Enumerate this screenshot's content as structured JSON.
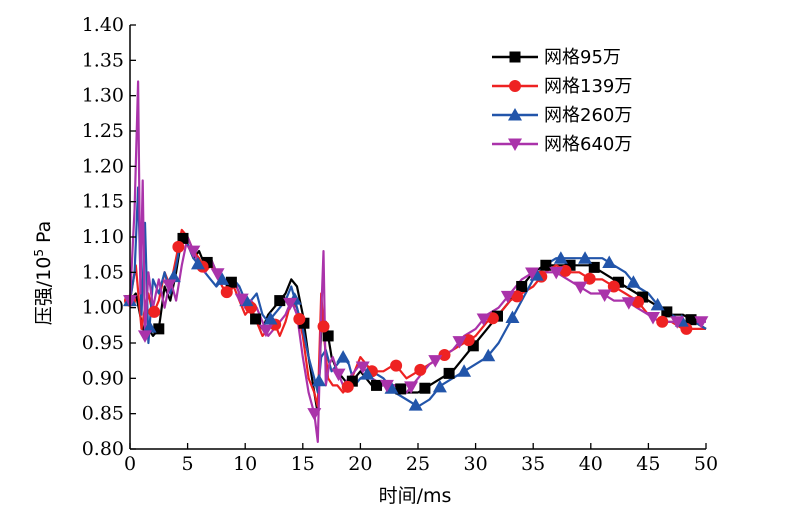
{
  "chart_data": {
    "type": "line",
    "title": "",
    "xlabel": "时间/ms",
    "ylabel_prefix": "压强/10",
    "ylabel_sup": "5",
    "ylabel_suffix": " Pa",
    "xlim": [
      0,
      50
    ],
    "ylim": [
      0.8,
      1.4
    ],
    "xticks": [
      "0",
      "5",
      "10",
      "15",
      "20",
      "25",
      "30",
      "35",
      "40",
      "45",
      "50"
    ],
    "yticks": [
      "0.80",
      "0.85",
      "0.90",
      "0.95",
      "1.00",
      "1.05",
      "1.10",
      "1.15",
      "1.20",
      "1.25",
      "1.30",
      "1.35",
      "1.40"
    ],
    "grid": false,
    "legend_position": "top-right",
    "series": [
      {
        "name": "网格95万",
        "color": "#000000",
        "marker": "square",
        "x": [
          0,
          0.5,
          1.0,
          1.3,
          1.6,
          2.0,
          2.5,
          3.0,
          3.5,
          4.0,
          4.5,
          5.0,
          5.5,
          6.0,
          6.5,
          7.0,
          7.5,
          8.0,
          8.5,
          9.0,
          9.5,
          10.0,
          10.5,
          11.0,
          11.5,
          12.0,
          12.5,
          13.0,
          13.5,
          14.0,
          14.5,
          15.0,
          15.5,
          16.0,
          16.3,
          16.6,
          17.0,
          17.5,
          18.0,
          18.5,
          19.0,
          19.5,
          20.0,
          21.0,
          22.0,
          23.0,
          24.0,
          25.0,
          26.0,
          27.0,
          28.0,
          29.0,
          30.0,
          31.0,
          32.0,
          33.0,
          34.0,
          35.0,
          36.0,
          37.0,
          38.0,
          39.0,
          40.0,
          41.0,
          42.0,
          43.0,
          44.0,
          45.0,
          46.0,
          47.0,
          48.0,
          49.0,
          50.0
        ],
        "y": [
          1.01,
          1.02,
          0.98,
          0.96,
          0.97,
          0.96,
          0.97,
          1.03,
          1.01,
          1.05,
          1.1,
          1.09,
          1.07,
          1.08,
          1.06,
          1.07,
          1.05,
          1.04,
          1.03,
          1.04,
          1.02,
          1.0,
          1.0,
          0.98,
          0.97,
          0.99,
          1.0,
          1.01,
          1.02,
          1.04,
          1.03,
          0.99,
          0.93,
          0.88,
          0.85,
          0.97,
          0.98,
          0.93,
          0.91,
          0.9,
          0.89,
          0.9,
          0.91,
          0.89,
          0.89,
          0.89,
          0.88,
          0.88,
          0.89,
          0.9,
          0.91,
          0.93,
          0.95,
          0.97,
          0.99,
          1.01,
          1.03,
          1.05,
          1.06,
          1.06,
          1.06,
          1.06,
          1.06,
          1.05,
          1.04,
          1.03,
          1.02,
          1.01,
          1.0,
          0.99,
          0.99,
          0.98,
          0.97
        ]
      },
      {
        "name": "网格139万",
        "color": "#ee2222",
        "marker": "circle",
        "x": [
          0,
          0.5,
          1.0,
          1.3,
          1.6,
          2.0,
          2.5,
          3.0,
          3.5,
          4.0,
          4.5,
          5.0,
          5.5,
          6.0,
          6.5,
          7.0,
          7.5,
          8.0,
          8.5,
          9.0,
          9.5,
          10.0,
          10.5,
          11.0,
          11.5,
          12.0,
          12.5,
          13.0,
          13.5,
          14.0,
          14.5,
          15.0,
          15.5,
          16.0,
          16.3,
          16.6,
          16.9,
          17.2,
          17.6,
          18.0,
          18.5,
          19.0,
          19.5,
          20.0,
          21.0,
          22.0,
          23.0,
          24.0,
          25.0,
          26.0,
          27.0,
          28.0,
          29.0,
          30.0,
          31.0,
          32.0,
          33.0,
          34.0,
          35.0,
          36.0,
          37.0,
          38.0,
          39.0,
          40.0,
          41.0,
          42.0,
          43.0,
          44.0,
          45.0,
          46.0,
          47.0,
          48.0,
          49.0,
          50.0
        ],
        "y": [
          1.01,
          1.06,
          0.97,
          1.0,
          1.02,
          0.99,
          1.01,
          1.05,
          1.03,
          1.07,
          1.11,
          1.1,
          1.08,
          1.07,
          1.05,
          1.06,
          1.05,
          1.03,
          1.02,
          1.03,
          1.01,
          0.99,
          1.0,
          0.98,
          0.96,
          0.97,
          0.98,
          0.96,
          0.98,
          1.01,
          1.0,
          0.96,
          0.9,
          0.88,
          0.86,
          1.02,
          0.95,
          0.9,
          0.89,
          0.89,
          0.88,
          0.89,
          0.91,
          0.93,
          0.91,
          0.91,
          0.92,
          0.9,
          0.91,
          0.92,
          0.93,
          0.94,
          0.95,
          0.96,
          0.98,
          0.99,
          1.01,
          1.02,
          1.03,
          1.05,
          1.06,
          1.05,
          1.05,
          1.04,
          1.04,
          1.03,
          1.02,
          1.01,
          0.99,
          0.98,
          0.98,
          0.97,
          0.97,
          0.97
        ]
      },
      {
        "name": "网格260万",
        "color": "#2255aa",
        "marker": "triangle-up",
        "x": [
          0,
          0.4,
          0.7,
          1.0,
          1.3,
          1.6,
          2.0,
          2.5,
          3.0,
          3.5,
          4.0,
          4.5,
          5.0,
          5.5,
          6.0,
          6.5,
          7.0,
          7.5,
          8.0,
          8.5,
          9.0,
          9.5,
          10.0,
          10.5,
          11.0,
          11.5,
          12.0,
          12.5,
          13.0,
          13.5,
          14.0,
          14.5,
          15.0,
          15.5,
          16.0,
          16.3,
          16.6,
          17.0,
          17.5,
          18.0,
          18.5,
          19.0,
          19.5,
          20.0,
          21.0,
          22.0,
          23.0,
          24.0,
          25.0,
          26.0,
          27.0,
          28.0,
          29.0,
          30.0,
          31.0,
          32.0,
          33.0,
          34.0,
          35.0,
          36.0,
          37.0,
          38.0,
          39.0,
          40.0,
          41.0,
          42.0,
          43.0,
          44.0,
          45.0,
          46.0,
          47.0,
          48.0,
          49.0,
          50.0
        ],
        "y": [
          1.01,
          1.05,
          1.17,
          0.99,
          1.12,
          0.95,
          1.04,
          1.02,
          1.05,
          1.02,
          1.06,
          1.1,
          1.09,
          1.07,
          1.06,
          1.05,
          1.04,
          1.03,
          1.04,
          1.03,
          1.04,
          1.03,
          1.01,
          1.01,
          1.02,
          0.99,
          0.98,
          0.99,
          1.0,
          1.01,
          1.03,
          1.0,
          0.97,
          0.93,
          0.9,
          0.88,
          0.93,
          0.94,
          0.91,
          0.92,
          0.93,
          0.92,
          0.89,
          0.9,
          0.91,
          0.9,
          0.88,
          0.87,
          0.86,
          0.87,
          0.89,
          0.9,
          0.91,
          0.92,
          0.93,
          0.95,
          0.98,
          1.01,
          1.04,
          1.06,
          1.07,
          1.07,
          1.07,
          1.07,
          1.07,
          1.06,
          1.05,
          1.03,
          1.02,
          1.0,
          0.99,
          0.98,
          0.98,
          0.97
        ]
      },
      {
        "name": "网格640万",
        "color": "#aa33aa",
        "marker": "triangle-down",
        "x": [
          0,
          0.4,
          0.7,
          0.9,
          1.1,
          1.3,
          1.6,
          2.0,
          2.5,
          3.0,
          3.5,
          4.0,
          4.5,
          5.0,
          5.5,
          6.0,
          6.5,
          7.0,
          7.5,
          8.0,
          8.5,
          9.0,
          9.5,
          10.0,
          10.5,
          11.0,
          11.5,
          12.0,
          12.5,
          13.0,
          13.5,
          14.0,
          14.5,
          15.0,
          15.5,
          16.0,
          16.3,
          16.6,
          16.8,
          17.0,
          17.3,
          17.6,
          18.0,
          18.5,
          19.0,
          19.5,
          20.0,
          21.0,
          22.0,
          23.0,
          24.0,
          25.0,
          26.0,
          27.0,
          28.0,
          29.0,
          30.0,
          31.0,
          32.0,
          33.0,
          34.0,
          35.0,
          36.0,
          37.0,
          38.0,
          39.0,
          40.0,
          41.0,
          42.0,
          43.0,
          44.0,
          45.0,
          46.0,
          47.0,
          48.0,
          49.0,
          50.0
        ],
        "y": [
          1.01,
          1.14,
          1.32,
          1.02,
          1.18,
          0.96,
          1.05,
          1.0,
          1.04,
          1.0,
          1.04,
          1.01,
          1.06,
          1.1,
          1.08,
          1.06,
          1.05,
          1.07,
          1.05,
          1.04,
          1.03,
          1.04,
          1.02,
          1.0,
          1.01,
          1.0,
          0.98,
          0.96,
          0.97,
          0.98,
          0.99,
          1.01,
          0.99,
          0.93,
          0.88,
          0.85,
          0.81,
          0.99,
          1.08,
          0.89,
          0.92,
          0.93,
          0.91,
          0.89,
          0.9,
          0.91,
          0.92,
          0.9,
          0.89,
          0.89,
          0.88,
          0.9,
          0.92,
          0.93,
          0.94,
          0.96,
          0.97,
          0.99,
          1.0,
          1.02,
          1.04,
          1.05,
          1.05,
          1.05,
          1.04,
          1.03,
          1.02,
          1.02,
          1.01,
          1.01,
          1.0,
          0.99,
          0.98,
          0.98,
          0.98,
          0.98,
          0.98
        ]
      }
    ]
  }
}
